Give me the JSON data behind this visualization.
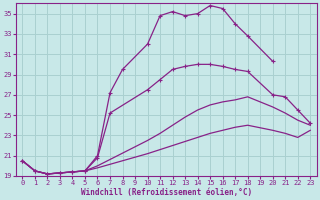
{
  "xlabel": "Windchill (Refroidissement éolien,°C)",
  "xlim": [
    -0.5,
    23.5
  ],
  "ylim": [
    19,
    36
  ],
  "yticks": [
    19,
    21,
    23,
    25,
    27,
    29,
    31,
    33,
    35
  ],
  "xticks": [
    0,
    1,
    2,
    3,
    4,
    5,
    6,
    7,
    8,
    9,
    10,
    11,
    12,
    13,
    14,
    15,
    16,
    17,
    18,
    19,
    20,
    21,
    22,
    23
  ],
  "bg_color": "#c8e8e8",
  "grid_color": "#aad0d0",
  "line_color": "#882288",
  "line1_x": [
    0,
    1,
    2,
    3,
    4,
    5,
    6,
    7,
    8,
    10,
    11,
    12,
    13,
    14,
    15,
    16,
    17,
    18,
    20
  ],
  "line1_y": [
    20.5,
    19.5,
    19.2,
    19.3,
    19.4,
    19.5,
    21.0,
    27.2,
    29.5,
    32.0,
    34.8,
    35.2,
    34.8,
    35.0,
    35.8,
    35.5,
    34.0,
    32.8,
    30.3
  ],
  "line2_x": [
    0,
    1,
    2,
    3,
    4,
    5,
    6,
    7,
    10,
    11,
    12,
    13,
    14,
    15,
    16,
    17,
    18,
    20,
    21,
    22,
    23
  ],
  "line2_y": [
    20.5,
    19.5,
    19.2,
    19.3,
    19.4,
    19.5,
    20.8,
    25.2,
    27.5,
    28.5,
    29.5,
    29.8,
    30.0,
    30.0,
    29.8,
    29.5,
    29.3,
    27.0,
    26.8,
    25.5,
    24.2
  ],
  "line3_x": [
    0,
    1,
    2,
    3,
    4,
    5,
    6,
    10,
    11,
    12,
    13,
    14,
    15,
    16,
    17,
    18,
    20,
    21,
    22,
    23
  ],
  "line3_y": [
    20.5,
    19.5,
    19.2,
    19.3,
    19.4,
    19.5,
    20.0,
    22.5,
    23.2,
    24.0,
    24.8,
    25.5,
    26.0,
    26.3,
    26.5,
    26.8,
    25.8,
    25.2,
    24.5,
    24.0
  ],
  "line4_x": [
    0,
    1,
    2,
    3,
    4,
    5,
    6,
    10,
    11,
    12,
    13,
    14,
    15,
    16,
    17,
    18,
    20,
    21,
    22,
    23
  ],
  "line4_y": [
    20.5,
    19.5,
    19.2,
    19.3,
    19.4,
    19.5,
    19.8,
    21.2,
    21.6,
    22.0,
    22.4,
    22.8,
    23.2,
    23.5,
    23.8,
    24.0,
    23.5,
    23.2,
    22.8,
    23.5
  ]
}
